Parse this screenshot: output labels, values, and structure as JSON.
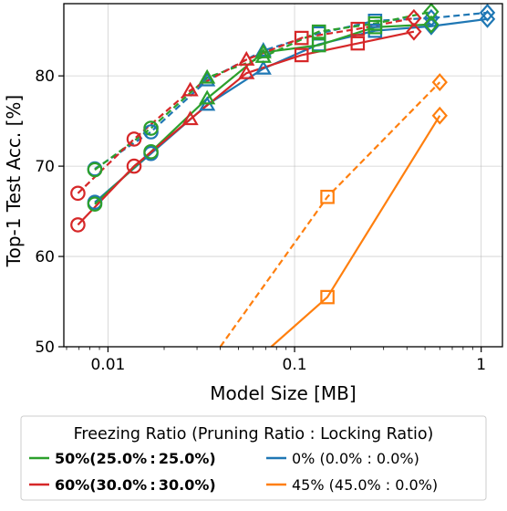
{
  "chart_data": {
    "type": "line",
    "x_scale": "log",
    "xlabel": "Model Size [MB]",
    "ylabel": "Top-1 Test Acc. [%]",
    "xlim": [
      0.0058,
      1.3
    ],
    "ylim": [
      50,
      88
    ],
    "x_ticks": [
      0.01,
      0.1,
      1
    ],
    "x_tick_labels": [
      "0.01",
      "0.1",
      "1"
    ],
    "y_ticks": [
      50,
      60,
      70,
      80
    ],
    "y_tick_labels": [
      "50",
      "60",
      "70",
      "80"
    ],
    "grid": true,
    "legend": {
      "title": "Freezing Ratio (Pruning Ratio : Locking Ratio)",
      "placement": "below the plot",
      "entries": [
        {
          "label": "50%(25.0% : 25.0%)",
          "color": "#2ca02c",
          "bold": true
        },
        {
          "label": "0% (0.0% : 0.0%)",
          "color": "#1f77b4",
          "bold": false
        },
        {
          "label": "60%(30.0% : 30.0%)",
          "color": "#d62728",
          "bold": true
        },
        {
          "label": "45% (45.0% : 0.0%)",
          "color": "#ff7f0e",
          "bold": false
        }
      ]
    },
    "series": [
      {
        "color": "#1f77b4",
        "style": "solid",
        "x": [
          0.0085,
          0.017,
          0.034,
          0.068,
          0.135,
          0.27,
          0.54,
          1.08
        ],
        "y": [
          66,
          71.4,
          76.8,
          80.8,
          83.5,
          85.0,
          85.5,
          86.3
        ],
        "markers": [
          "o",
          "o",
          "^",
          "^",
          "s",
          "s",
          "D",
          "D"
        ]
      },
      {
        "color": "#1f77b4",
        "style": "dashed",
        "x": [
          0.0085,
          0.017,
          0.034,
          0.068,
          0.135,
          0.27,
          0.54,
          1.08
        ],
        "y": [
          69.7,
          73.8,
          79.5,
          82.8,
          84.7,
          86.1,
          86.4,
          87.0
        ],
        "markers": [
          "o",
          "o",
          "^",
          "^",
          "s",
          "s",
          "D",
          "D"
        ]
      },
      {
        "color": "#2ca02c",
        "style": "solid",
        "x": [
          0.0085,
          0.017,
          0.034,
          0.068,
          0.135,
          0.27,
          0.54
        ],
        "y": [
          65.8,
          71.6,
          77.5,
          82.6,
          83.4,
          85.4,
          85.7
        ],
        "markers": [
          "o",
          "o",
          "^",
          "^",
          "s",
          "s",
          "D"
        ]
      },
      {
        "color": "#2ca02c",
        "style": "dashed",
        "x": [
          0.0085,
          0.017,
          0.034,
          0.068,
          0.135,
          0.27,
          0.54
        ],
        "y": [
          69.6,
          74.2,
          79.8,
          82.1,
          84.9,
          85.8,
          87.1
        ],
        "markers": [
          "o",
          "o",
          "^",
          "^",
          "s",
          "s",
          "D"
        ]
      },
      {
        "color": "#d62728",
        "style": "solid",
        "x": [
          0.0069,
          0.0138,
          0.0276,
          0.0552,
          0.109,
          0.218,
          0.436
        ],
        "y": [
          63.5,
          70.0,
          75.2,
          80.3,
          82.3,
          83.6,
          84.9
        ],
        "markers": [
          "o",
          "o",
          "^",
          "^",
          "s",
          "s",
          "D"
        ]
      },
      {
        "color": "#d62728",
        "style": "dashed",
        "x": [
          0.0069,
          0.0138,
          0.0276,
          0.0552,
          0.109,
          0.218,
          0.436
        ],
        "y": [
          67.0,
          73.0,
          78.4,
          81.8,
          84.2,
          85.2,
          86.4
        ],
        "markers": [
          "o",
          "o",
          "^",
          "^",
          "s",
          "s",
          "D"
        ]
      },
      {
        "color": "#ff7f0e",
        "style": "solid",
        "x": [
          0.075,
          0.15,
          0.6
        ],
        "y": [
          50,
          55.5,
          75.6
        ],
        "markers": [
          "",
          "s",
          "D"
        ]
      },
      {
        "color": "#ff7f0e",
        "style": "dashed",
        "x": [
          0.04,
          0.15,
          0.6
        ],
        "y": [
          50,
          66.6,
          79.3
        ],
        "markers": [
          "",
          "s",
          "D"
        ]
      }
    ]
  }
}
